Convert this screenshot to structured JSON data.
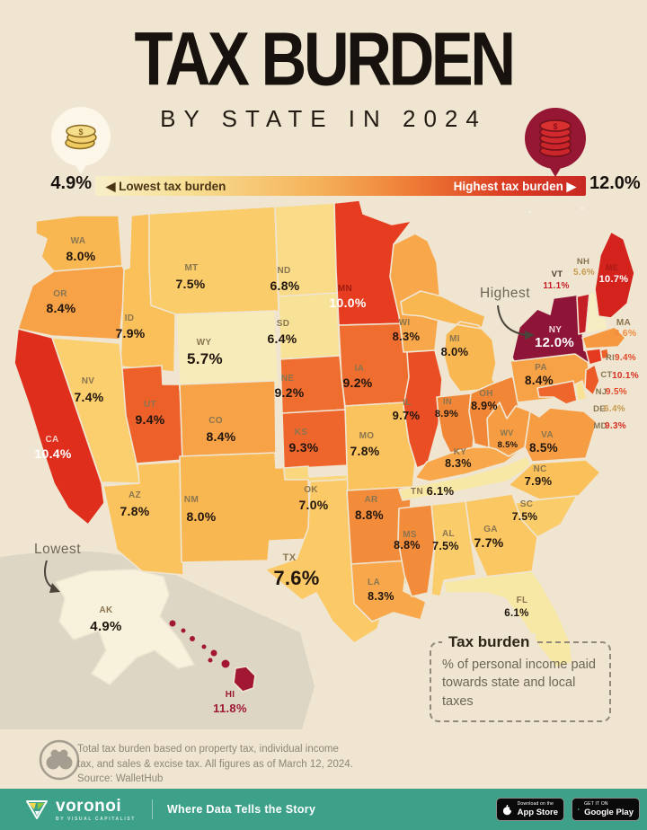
{
  "header": {
    "title": "TAX BURDEN",
    "subtitle": "BY STATE IN 2024"
  },
  "legend": {
    "min_value": "4.9%",
    "max_value": "12.0%",
    "low_label": "◀ Lowest tax burden",
    "high_label": "Highest tax burden ▶"
  },
  "icons": {
    "low": "small-coin-stack-icon",
    "high": "large-coin-stack-icon",
    "footnote": "binoculars-icon",
    "brand": "voronoi-triangle-logo",
    "appstore": "apple-icon",
    "gplay": "google-play-icon"
  },
  "annotations": {
    "highest": "Highest",
    "lowest": "Lowest"
  },
  "infobox": {
    "title": "Tax burden",
    "body": "% of personal income paid towards state and local taxes"
  },
  "footnote": {
    "lines": [
      "Total tax burden based on property tax, individual income",
      "tax, and sales & excise tax. All figures as of March 12, 2024.",
      "Source: WalletHub"
    ]
  },
  "footer": {
    "brand": "voronoi",
    "brand_sub": "BY VISUAL CAPITALIST",
    "tagline": "Where Data Tells the Story",
    "appstore_top": "Download on the",
    "appstore_bottom": "App Store",
    "gplay_top": "GET IT ON",
    "gplay_bottom": "Google Play"
  },
  "colors": {
    "background": "#EFE5D1",
    "state_border": "#EFE5D1",
    "footer_teal": "#3DA189",
    "abbr_default": "#8A7550",
    "value_default": "#20150D",
    "gradient_low": "#F8EFC8",
    "gradient_high": "#C82823",
    "inset_gray": "#DDD6C5"
  },
  "map": {
    "states": [
      {
        "id": "WA",
        "abbr": "WA",
        "value": "8.0%",
        "num": 8.0,
        "fill": "#F9B752"
      },
      {
        "id": "OR",
        "abbr": "OR",
        "value": "8.4%",
        "num": 8.4,
        "fill": "#F7A247"
      },
      {
        "id": "CA",
        "abbr": "CA",
        "value": "10.4%",
        "num": 10.4,
        "fill": "#E02E1D",
        "abbr_color": "#F7CFC5",
        "value_color": "#FFFFFF"
      },
      {
        "id": "ID",
        "abbr": "ID",
        "value": "7.9%",
        "num": 7.9,
        "fill": "#FAC059"
      },
      {
        "id": "NV",
        "abbr": "NV",
        "value": "7.4%",
        "num": 7.4,
        "fill": "#FBCE6E"
      },
      {
        "id": "UT",
        "abbr": "UT",
        "value": "9.4%",
        "num": 9.4,
        "fill": "#ED602A"
      },
      {
        "id": "AZ",
        "abbr": "AZ",
        "value": "7.8%",
        "num": 7.8,
        "fill": "#FBC35D"
      },
      {
        "id": "MT",
        "abbr": "MT",
        "value": "7.5%",
        "num": 7.5,
        "fill": "#FBCC6A"
      },
      {
        "id": "WY",
        "abbr": "WY",
        "value": "5.7%",
        "num": 5.7,
        "fill": "#F7EBBA"
      },
      {
        "id": "CO",
        "abbr": "CO",
        "value": "8.4%",
        "num": 8.4,
        "fill": "#F7A247"
      },
      {
        "id": "NM",
        "abbr": "NM",
        "value": "8.0%",
        "num": 8.0,
        "fill": "#F9B752"
      },
      {
        "id": "ND",
        "abbr": "ND",
        "value": "6.8%",
        "num": 6.8,
        "fill": "#F9DB88"
      },
      {
        "id": "SD",
        "abbr": "SD",
        "value": "6.4%",
        "num": 6.4,
        "fill": "#F8E298"
      },
      {
        "id": "NE",
        "abbr": "NE",
        "value": "9.2%",
        "num": 9.2,
        "fill": "#EF6D2E"
      },
      {
        "id": "KS",
        "abbr": "KS",
        "value": "9.3%",
        "num": 9.3,
        "fill": "#EE662C"
      },
      {
        "id": "OK",
        "abbr": "OK",
        "value": "7.0%",
        "num": 7.0,
        "fill": "#FAD67D"
      },
      {
        "id": "TX",
        "abbr": "TX",
        "value": "7.6%",
        "num": 7.6,
        "fill": "#FBCA66"
      },
      {
        "id": "MN",
        "abbr": "MN",
        "value": "10.0%",
        "num": 10.0,
        "fill": "#E63D20",
        "abbr_color": "#9E1B12",
        "value_color": "#FFFFFF"
      },
      {
        "id": "IA",
        "abbr": "IA",
        "value": "9.2%",
        "num": 9.2,
        "fill": "#EF6D2E"
      },
      {
        "id": "MO",
        "abbr": "MO",
        "value": "7.8%",
        "num": 7.8,
        "fill": "#FBC35D"
      },
      {
        "id": "AR",
        "abbr": "AR",
        "value": "8.8%",
        "num": 8.8,
        "fill": "#F38C3A"
      },
      {
        "id": "LA",
        "abbr": "LA",
        "value": "8.3%",
        "num": 8.3,
        "fill": "#F8A84B"
      },
      {
        "id": "WI",
        "abbr": "WI",
        "value": "8.3%",
        "num": 8.3,
        "fill": "#F8A84B"
      },
      {
        "id": "IL",
        "abbr": "IL",
        "value": "9.7%",
        "num": 9.7,
        "fill": "#EA4E24"
      },
      {
        "id": "MI",
        "abbr": "MI",
        "value": "8.0%",
        "num": 8.0,
        "fill": "#F9B752"
      },
      {
        "id": "IN",
        "abbr": "IN",
        "value": "8.9%",
        "num": 8.9,
        "fill": "#F18736"
      },
      {
        "id": "OH",
        "abbr": "OH",
        "value": "8.9%",
        "num": 8.9,
        "fill": "#F18736"
      },
      {
        "id": "KY",
        "abbr": "KY",
        "value": "8.3%",
        "num": 8.3,
        "fill": "#F8A84B"
      },
      {
        "id": "TN",
        "abbr": "TN",
        "value": "6.1%",
        "num": 6.1,
        "fill": "#F8E8A6"
      },
      {
        "id": "WV",
        "abbr": "WV",
        "value": "8.5%",
        "num": 8.5,
        "fill": "#F69D44"
      },
      {
        "id": "VA",
        "abbr": "VA",
        "value": "8.5%",
        "num": 8.5,
        "fill": "#F69D44"
      },
      {
        "id": "NC",
        "abbr": "NC",
        "value": "7.9%",
        "num": 7.9,
        "fill": "#FAC059"
      },
      {
        "id": "SC",
        "abbr": "SC",
        "value": "7.5%",
        "num": 7.5,
        "fill": "#FBCC6A"
      },
      {
        "id": "GA",
        "abbr": "GA",
        "value": "7.7%",
        "num": 7.7,
        "fill": "#FBC762"
      },
      {
        "id": "AL",
        "abbr": "AL",
        "value": "7.5%",
        "num": 7.5,
        "fill": "#FBCC6A"
      },
      {
        "id": "MS",
        "abbr": "MS",
        "value": "8.8%",
        "num": 8.8,
        "fill": "#F38C3A"
      },
      {
        "id": "FL",
        "abbr": "FL",
        "value": "6.1%",
        "num": 6.1,
        "fill": "#F8E8A6"
      },
      {
        "id": "PA",
        "abbr": "PA",
        "value": "8.4%",
        "num": 8.4,
        "fill": "#F7A247"
      },
      {
        "id": "NY",
        "abbr": "NY",
        "value": "12.0%",
        "num": 12.0,
        "fill": "#8E1438",
        "abbr_color": "#F2D8DC",
        "value_color": "#FFFFFF"
      },
      {
        "id": "VT",
        "abbr": "VT",
        "value": "11.1%",
        "num": 11.1,
        "fill": "#C41F26",
        "abbr_color": "#4A3B2C",
        "value_color": "#C41F26"
      },
      {
        "id": "NH",
        "abbr": "NH",
        "value": "5.6%",
        "num": 5.6,
        "fill": "#F7EDC2",
        "value_color": "#C79A4D"
      },
      {
        "id": "ME",
        "abbr": "ME",
        "value": "10.7%",
        "num": 10.7,
        "fill": "#D4231D",
        "abbr_color": "#A81915",
        "value_color": "#FFFFFF"
      },
      {
        "id": "MA",
        "abbr": "MA",
        "value": "8.6%",
        "num": 8.6,
        "fill": "#F59840",
        "value_color": "#F28C3D"
      },
      {
        "id": "RI",
        "abbr": "RI",
        "value": "9.4%",
        "num": 9.4,
        "fill": "#ED602A",
        "value_color": "#E2492A"
      },
      {
        "id": "CT",
        "abbr": "CT",
        "value": "10.1%",
        "num": 10.1,
        "fill": "#E5391F",
        "value_color": "#D92F20"
      },
      {
        "id": "NJ",
        "abbr": "NJ",
        "value": "9.5%",
        "num": 9.5,
        "fill": "#EC5A28",
        "value_color": "#E2492A"
      },
      {
        "id": "DE",
        "abbr": "DE",
        "value": "6.4%",
        "num": 6.4,
        "fill": "#F8E298",
        "value_color": "#C79A4D"
      },
      {
        "id": "MD",
        "abbr": "MD",
        "value": "9.3%",
        "num": 9.3,
        "fill": "#EE662C",
        "value_color": "#D92F20"
      },
      {
        "id": "AK",
        "abbr": "AK",
        "value": "4.9%",
        "num": 4.9,
        "fill": "#F8F2DC"
      },
      {
        "id": "HI",
        "abbr": "HI",
        "value": "11.8%",
        "num": 11.8,
        "fill": "#A21834",
        "abbr_color": "#9E1733",
        "value_color": "#9E1733"
      }
    ]
  },
  "chart_data": {
    "type": "heatmap",
    "subtype": "us-choropleth",
    "title": "Tax Burden by State in 2024",
    "unit": "% of personal income paid towards state and local taxes",
    "value_range": [
      4.9,
      12.0
    ],
    "legend": {
      "low": "Lowest tax burden 4.9%",
      "high": "Highest tax burden 12.0%"
    },
    "source": "WalletHub",
    "as_of": "March 12, 2024",
    "categories": [
      "WA",
      "OR",
      "CA",
      "ID",
      "NV",
      "UT",
      "AZ",
      "MT",
      "WY",
      "CO",
      "NM",
      "ND",
      "SD",
      "NE",
      "KS",
      "OK",
      "TX",
      "MN",
      "IA",
      "MO",
      "AR",
      "LA",
      "WI",
      "IL",
      "MI",
      "IN",
      "OH",
      "KY",
      "TN",
      "WV",
      "VA",
      "NC",
      "SC",
      "GA",
      "AL",
      "MS",
      "FL",
      "PA",
      "NY",
      "VT",
      "NH",
      "ME",
      "MA",
      "RI",
      "CT",
      "NJ",
      "DE",
      "MD",
      "AK",
      "HI"
    ],
    "values": [
      8.0,
      8.4,
      10.4,
      7.9,
      7.4,
      9.4,
      7.8,
      7.5,
      5.7,
      8.4,
      8.0,
      6.8,
      6.4,
      9.2,
      9.3,
      7.0,
      7.6,
      10.0,
      9.2,
      7.8,
      8.8,
      8.3,
      8.3,
      9.7,
      8.0,
      8.9,
      8.9,
      8.3,
      6.1,
      8.5,
      8.5,
      7.9,
      7.5,
      7.7,
      7.5,
      8.8,
      6.1,
      8.4,
      12.0,
      11.1,
      5.6,
      10.7,
      8.6,
      9.4,
      10.1,
      9.5,
      6.4,
      9.3,
      4.9,
      11.8
    ],
    "extremes": {
      "highest": {
        "state": "NY",
        "value": 12.0
      },
      "lowest": {
        "state": "AK",
        "value": 4.9
      }
    }
  }
}
